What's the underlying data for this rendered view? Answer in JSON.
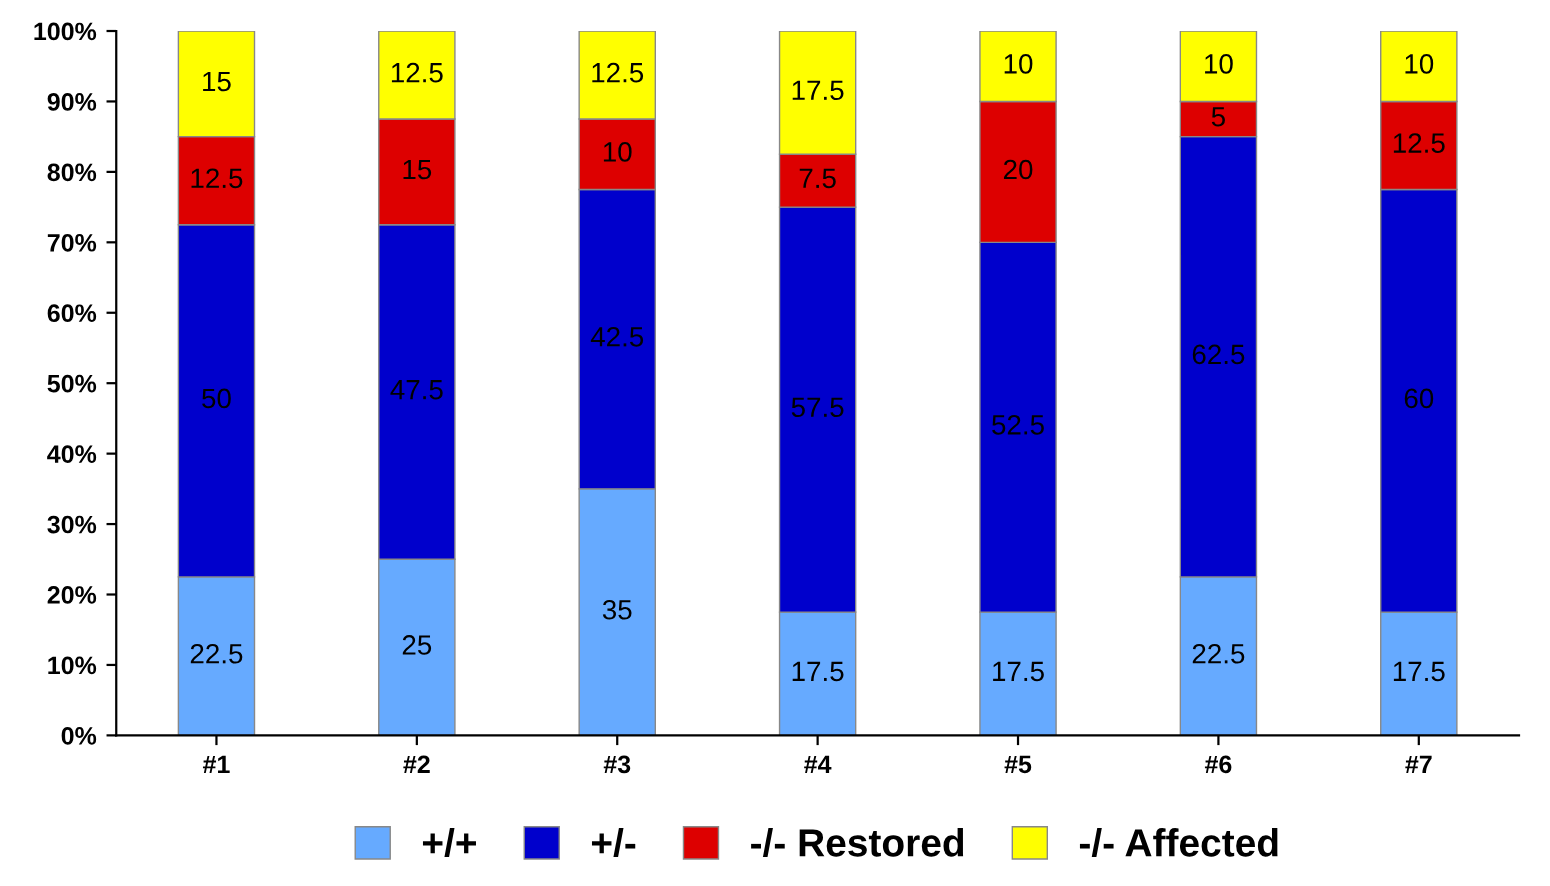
{
  "chart_data": {
    "type": "bar",
    "stacked": true,
    "data_labels": true,
    "grid": false,
    "legend": "bottom",
    "categories": [
      "#1",
      "#2",
      "#3",
      "#4",
      "#5",
      "#6",
      "#7"
    ],
    "series": [
      {
        "name": "+/+",
        "color": "#66aaff",
        "values": [
          22.5,
          25,
          35,
          17.5,
          17.5,
          22.5,
          17.5
        ]
      },
      {
        "name": "+/-",
        "color": "#0000cc",
        "values": [
          50,
          47.5,
          42.5,
          57.5,
          52.5,
          62.5,
          60
        ]
      },
      {
        "name": "-/- Restored",
        "color": "#dd0000",
        "values": [
          12.5,
          15,
          10,
          7.5,
          20,
          5,
          12.5
        ]
      },
      {
        "name": "-/- Affected",
        "color": "#ffff00",
        "values": [
          15,
          12.5,
          12.5,
          17.5,
          10,
          10,
          10
        ]
      }
    ],
    "ylim": [
      0,
      100
    ],
    "yticks": [
      {
        "value": 0,
        "label": "0%"
      },
      {
        "value": 10,
        "label": "10%"
      },
      {
        "value": 20,
        "label": "20%"
      },
      {
        "value": 30,
        "label": "30%"
      },
      {
        "value": 40,
        "label": "40%"
      },
      {
        "value": 50,
        "label": "50%"
      },
      {
        "value": 60,
        "label": "60%"
      },
      {
        "value": 70,
        "label": "70%"
      },
      {
        "value": 80,
        "label": "80%"
      },
      {
        "value": 90,
        "label": "90%"
      },
      {
        "value": 100,
        "label": "100%"
      }
    ]
  }
}
